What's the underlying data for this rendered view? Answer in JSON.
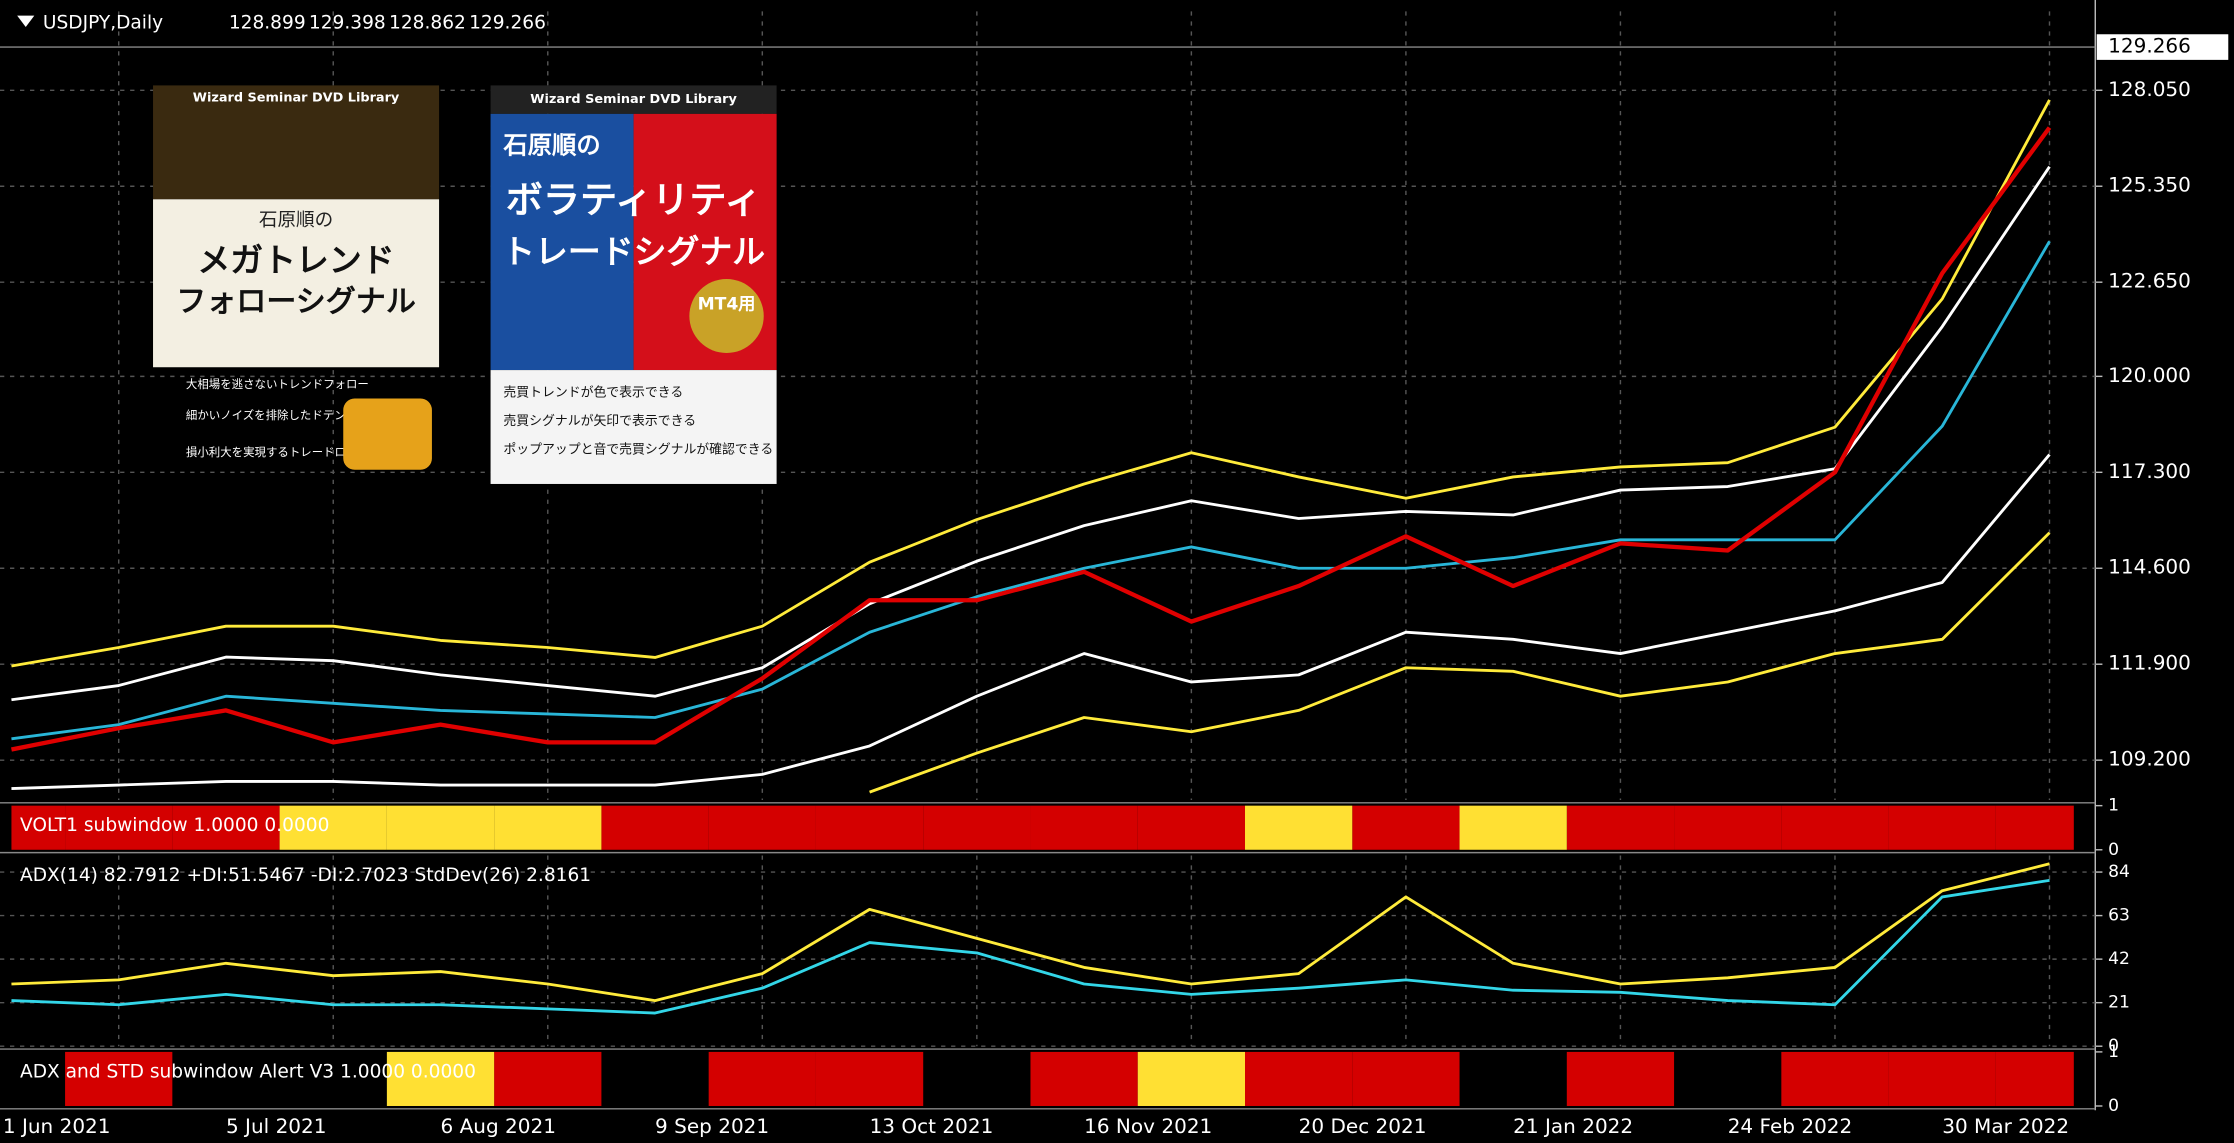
{
  "chart_data": [
    {
      "type": "line",
      "title": "USDJPY,Daily",
      "ohlc": [
        128.899,
        129.398,
        128.862,
        129.266
      ],
      "last_price": 129.266,
      "categories": [
        "1 Jun 2021",
        null,
        "5 Jul 2021",
        null,
        "6 Aug 2021",
        null,
        "9 Sep 2021",
        null,
        "13 Oct 2021",
        null,
        "16 Nov 2021",
        null,
        "20 Dec 2021",
        null,
        "21 Jan 2022",
        null,
        "24 Feb 2022",
        null,
        "30 Mar 2022",
        null
      ],
      "ylim": [
        108.08,
        130.27
      ],
      "yticks": [
        {
          "value": 109.2,
          "label": "109.200"
        },
        {
          "value": 111.9,
          "label": "111.900"
        },
        {
          "value": 114.6,
          "label": "114.600"
        },
        {
          "value": 117.3,
          "label": "117.300"
        },
        {
          "value": 120,
          "label": "120.000"
        },
        {
          "value": 122.65,
          "label": "122.650"
        },
        {
          "value": 125.35,
          "label": "125.350"
        },
        {
          "value": 128.05,
          "label": "128.050"
        }
      ],
      "grid": true,
      "series": [
        {
          "color": "#ffeb3b",
          "values": [
            111.85,
            112.37,
            112.97,
            112.97,
            112.57,
            112.37,
            112.09,
            112.97,
            114.77,
            115.97,
            116.97,
            117.85,
            117.17,
            116.57,
            117.17,
            117.45,
            117.57,
            118.57,
            122.18,
            127.78
          ]
        },
        {
          "color": "#ffffff",
          "values": [
            110.9,
            111.3,
            112.1,
            112.0,
            111.6,
            111.3,
            111.0,
            111.8,
            113.6,
            114.8,
            115.8,
            116.5,
            116.0,
            116.2,
            116.1,
            116.8,
            116.9,
            117.4,
            121.4,
            125.9
          ]
        },
        {
          "color": "#29b6d8",
          "values": [
            109.8,
            110.2,
            111.0,
            110.8,
            110.6,
            110.5,
            110.4,
            111.2,
            112.8,
            113.8,
            114.6,
            115.2,
            114.6,
            114.6,
            114.9,
            115.4,
            115.4,
            115.4,
            118.6,
            123.8
          ]
        },
        {
          "color": "#ffffff",
          "values": [
            108.4,
            108.5,
            108.6,
            108.6,
            108.5,
            108.5,
            108.5,
            108.8,
            109.6,
            111.0,
            112.2,
            111.4,
            111.6,
            112.8,
            112.6,
            112.2,
            112.8,
            113.4,
            114.2,
            117.8
          ]
        },
        {
          "color": "#ffeb3b",
          "values": [
            null,
            null,
            null,
            null,
            null,
            null,
            null,
            null,
            108.3,
            109.4,
            110.4,
            110.0,
            110.6,
            111.8,
            111.7,
            111.0,
            111.4,
            112.2,
            112.6,
            115.6
          ]
        },
        {
          "color": "#e00000",
          "values": [
            109.5,
            110.1,
            110.6,
            109.7,
            110.2,
            109.7,
            109.7,
            111.5,
            113.7,
            113.7,
            114.5,
            113.1,
            114.1,
            115.5,
            114.1,
            115.3,
            115.1,
            117.3,
            122.9,
            127.0
          ]
        }
      ]
    },
    {
      "type": "state",
      "title": "VOLT1 subwindow 1.0000 0.0000",
      "ylim": [
        0,
        1
      ],
      "yticks": [
        0,
        1
      ],
      "series": [
        {
          "color": "#d40000",
          "values": [
            1,
            1,
            1,
            0,
            0,
            0,
            1,
            1,
            1,
            1,
            1,
            1,
            0,
            1,
            0,
            1,
            1,
            1,
            1,
            1
          ]
        },
        {
          "color": "#ffe033",
          "values": [
            0,
            0,
            0,
            1,
            1,
            1,
            0,
            0,
            0,
            0,
            0,
            0,
            1,
            0,
            1,
            0,
            0,
            0,
            0,
            0
          ]
        }
      ]
    },
    {
      "type": "line",
      "title": "ADX(14) 82.7912 +DI:51.5467 -DI:2.7023  StdDev(26) 2.8161",
      "ylim": [
        0,
        92
      ],
      "yticks": [
        0,
        21,
        42,
        63,
        84
      ],
      "grid": true,
      "series": [
        {
          "color": "#ffeb3b",
          "values": [
            30,
            32,
            40,
            34,
            36,
            30,
            22,
            35,
            66,
            52,
            38,
            30,
            35,
            72,
            40,
            30,
            33,
            38,
            75,
            88
          ]
        },
        {
          "color": "#33d6e8",
          "values": [
            22,
            20,
            25,
            20,
            20,
            18,
            16,
            28,
            50,
            45,
            30,
            25,
            28,
            32,
            27,
            26,
            22,
            20,
            72,
            80
          ]
        }
      ]
    },
    {
      "type": "state",
      "title": "ADX and STD subwindow Alert V3 1.0000 0.0000",
      "ylim": [
        0,
        1
      ],
      "yticks": [
        0,
        1
      ],
      "series": [
        {
          "color": "#d40000",
          "values": [
            0,
            1,
            0,
            0,
            0,
            1,
            0,
            1,
            1,
            0,
            1,
            0,
            1,
            1,
            0,
            1,
            0,
            1,
            1,
            1
          ]
        },
        {
          "color": "#ffe033",
          "values": [
            0,
            0,
            0,
            0,
            1,
            0,
            0,
            0,
            0,
            0,
            0,
            1,
            0,
            0,
            0,
            0,
            0,
            0,
            0,
            0
          ]
        }
      ]
    }
  ],
  "books": [
    {
      "series": "Wizard Seminar DVD Library",
      "author": "石原順の",
      "title": [
        "メガトレンド",
        "フォローシグナル"
      ],
      "points": [
        "大相場を逃さないトレンドフォロー",
        "細かいノイズを排除したドテンシステムを採用",
        "損小利大を実現するトレードロジック"
      ]
    },
    {
      "series": "Wizard Seminar DVD Library",
      "author": "石原順の",
      "title": [
        "ボラティリティ",
        "トレードシグナル"
      ],
      "badge": "MT4用",
      "points": [
        "売買トレンドが色で表示できる",
        "売買シグナルが矢印で表示できる",
        "ポップアップと音で売買シグナルが確認できる"
      ]
    }
  ]
}
